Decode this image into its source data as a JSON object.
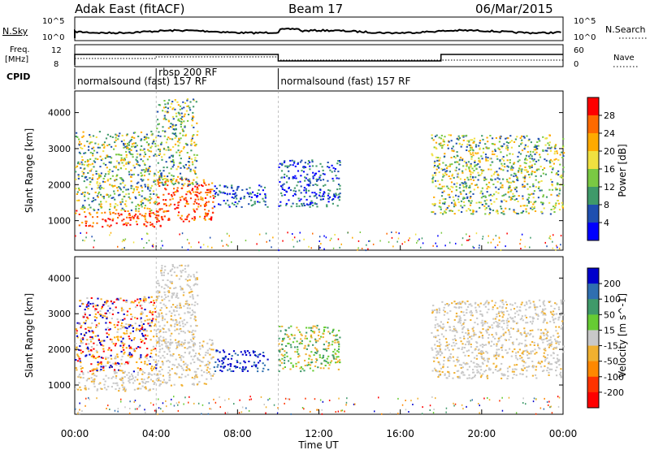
{
  "header": {
    "station": "Adak East (fitACF)",
    "beam": "Beam 17",
    "date": "06/Mar/2015"
  },
  "top_panels": {
    "nsky_label": "N.Sky",
    "nsky_ticks": [
      "10^5",
      "10^0"
    ],
    "nsearch_label": "N.Search",
    "nsearch_ticks": [
      "10^5",
      "10^0"
    ],
    "freq_label_1": "Freq.",
    "freq_label_2": "[MHz]",
    "freq_ticks": [
      "12",
      "8"
    ],
    "nave_label": "Nave",
    "nave_ticks": [
      "60",
      "0"
    ],
    "cpid_label": "CPID",
    "cpid_segments": [
      {
        "text": "normalsound (fast) 157 RF",
        "start_hour": 0,
        "end_hour": 4
      },
      {
        "text": "rbsp 200 RF",
        "start_hour": 4,
        "end_hour": 10
      },
      {
        "text": "normalsound (fast) 157 RF",
        "start_hour": 10,
        "end_hour": 24
      }
    ]
  },
  "chart_data": [
    {
      "type": "heatmap",
      "panel": "power",
      "ylabel": "Slant Range [km]",
      "ylim": [
        180,
        4600
      ],
      "yticks": [
        1000,
        2000,
        3000,
        4000
      ],
      "xlim": [
        0,
        24
      ],
      "colorbar_label": "Power [dB]",
      "colorbar_ticks": [
        "28",
        "24",
        "20",
        "16",
        "12",
        "8",
        "4"
      ],
      "colorbar_colors": [
        "#ff0000",
        "#ff6a00",
        "#ffaa00",
        "#f0e040",
        "#7ac943",
        "#3f9a6a",
        "#1f4fb0",
        "#0000ff"
      ],
      "regions": [
        {
          "x": [
            0.0,
            4.2
          ],
          "y": [
            850,
            1300
          ],
          "level": "high"
        },
        {
          "x": [
            4.0,
            6.8
          ],
          "y": [
            1000,
            2200
          ],
          "level": "high"
        },
        {
          "x": [
            0.0,
            4.0
          ],
          "y": [
            1300,
            3500
          ],
          "level": "mid"
        },
        {
          "x": [
            4.0,
            6.0
          ],
          "y": [
            2000,
            4400
          ],
          "level": "mid"
        },
        {
          "x": [
            6.8,
            9.5
          ],
          "y": [
            1400,
            2000
          ],
          "level": "low"
        },
        {
          "x": [
            10.0,
            13.0
          ],
          "y": [
            1400,
            2700
          ],
          "level": "low"
        },
        {
          "x": [
            17.5,
            24.0
          ],
          "y": [
            1200,
            3400
          ],
          "level": "mid"
        }
      ]
    },
    {
      "type": "heatmap",
      "panel": "velocity",
      "ylabel": "Slant Range [km]",
      "ylim": [
        180,
        4600
      ],
      "yticks": [
        1000,
        2000,
        3000,
        4000
      ],
      "xlim": [
        0,
        24
      ],
      "xlabel": "Time UT",
      "xticks": [
        "00:00",
        "04:00",
        "08:00",
        "12:00",
        "16:00",
        "20:00",
        "00:00"
      ],
      "colorbar_label": "Velocity [m s^-1]",
      "colorbar_ticks": [
        "200",
        "100",
        "50",
        "15",
        "-15",
        "-50",
        "-100",
        "-200"
      ],
      "colorbar_colors": [
        "#0000cc",
        "#2f6fb0",
        "#3f9a6a",
        "#66cc33",
        "#c8c8c8",
        "#f0b030",
        "#ff8800",
        "#ff3300",
        "#ff0000"
      ],
      "regions": [
        {
          "x": [
            0.0,
            4.2
          ],
          "y": [
            850,
            1400
          ],
          "level": "gray"
        },
        {
          "x": [
            4.0,
            6.8
          ],
          "y": [
            1000,
            2300
          ],
          "level": "gray"
        },
        {
          "x": [
            0.0,
            4.0
          ],
          "y": [
            1400,
            3500
          ],
          "level": "orange"
        },
        {
          "x": [
            4.0,
            6.0
          ],
          "y": [
            2100,
            4400
          ],
          "level": "gray"
        },
        {
          "x": [
            6.8,
            9.5
          ],
          "y": [
            1400,
            2000
          ],
          "level": "blue"
        },
        {
          "x": [
            10.0,
            13.0
          ],
          "y": [
            1400,
            2700
          ],
          "level": "green"
        },
        {
          "x": [
            17.5,
            24.0
          ],
          "y": [
            1200,
            3400
          ],
          "level": "gray"
        }
      ]
    }
  ]
}
